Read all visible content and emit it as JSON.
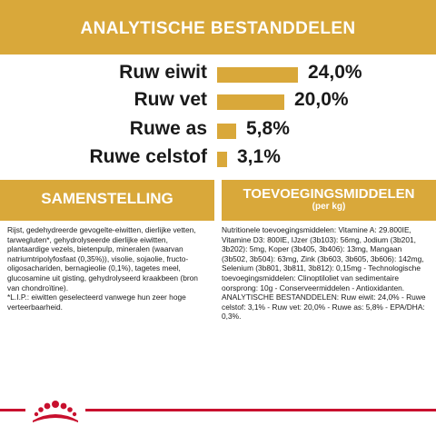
{
  "header": {
    "title": "ANALYTISCHE BESTANDDELEN"
  },
  "analysis": {
    "items": [
      {
        "label": "Ruw eiwit",
        "value": "24,0%",
        "fraction": 0.24
      },
      {
        "label": "Ruw vet",
        "value": "20,0%",
        "fraction": 0.2
      },
      {
        "label": "Ruwe as",
        "value": "5,8%",
        "fraction": 0.058
      },
      {
        "label": "Ruwe celstof",
        "value": "3,1%",
        "fraction": 0.031
      }
    ]
  },
  "composition": {
    "title": "SAMENSTELLING",
    "text": "Rijst, gedehydreerde gevogelte-eiwitten, dierlijke vetten, tarwegluten*, gehydrolyseerde dierlijke eiwitten, plantaardige vezels, bietenpulp, mineralen (waarvan natriumtripolyfosfaat (0,35%)), visolie, sojaolie, fructo-oligosachariden, bernagieolie (0,1%), tagetes meel, glucosamine uit gisting, gehydrolyseerd kraakbeen (bron van chondroïtine).\n*L.I.P.: eiwitten geselecteerd vanwege hun zeer hoge verteerbaarheid."
  },
  "additives": {
    "title": "TOEVOEGINGSMIDDELEN",
    "subtitle": "(per kg)",
    "text": "Nutritionele toevoegingsmiddelen: Vitamine A: 29.800IE, Vitamine D3: 800IE, IJzer (3b103): 56mg, Jodium (3b201, 3b202): 5mg, Koper (3b405, 3b406): 13mg, Mangaan (3b502, 3b504): 63mg, Zink (3b603, 3b605, 3b606): 142mg, Selenium (3b801, 3b811, 3b812): 0,15mg - Technologische toevoegingsmiddelen: Clinoptiloliet van sedimentaire oorsprong: 10g - Conserveermiddelen - Antioxidanten. ANALYTISCHE BESTANDDELEN: Ruw eiwit: 24,0% - Ruwe celstof: 3,1% - Ruw vet: 20,0% - Ruwe as: 5,8% - EPA/DHA: 0,3%."
  },
  "colors": {
    "accent": "#d9a83a",
    "brand_red": "#c8102e",
    "text": "#1a1a1a"
  },
  "logo": {
    "icon": "royal-canin-crown-logo"
  }
}
